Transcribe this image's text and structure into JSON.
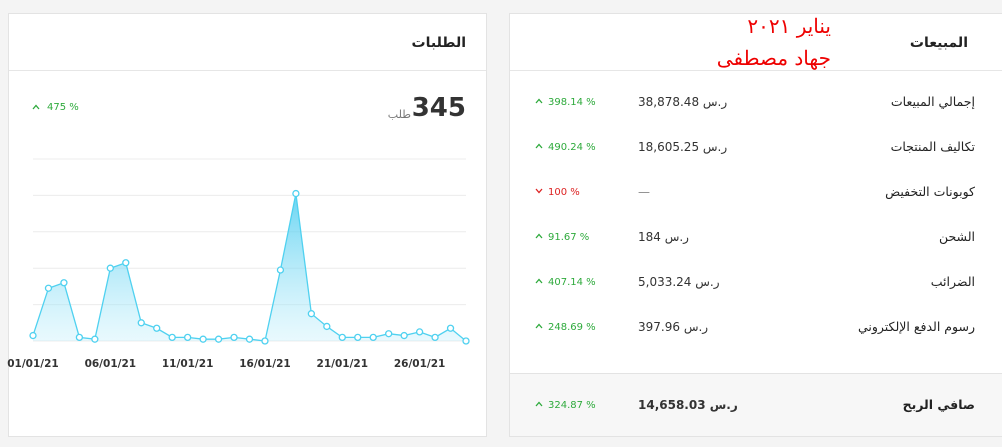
{
  "sales": {
    "title": "المبيعات",
    "annotation": [
      "يناير ٢٠٢١",
      "جهاد مصطفى"
    ],
    "rows": [
      {
        "label": "إجمالي المبيعات",
        "value": "38,878.48 ر.س",
        "change": "398.14 %"
      },
      {
        "label": "تكاليف المنتجات",
        "value": "18,605.25 ر.س",
        "change": "490.24 %"
      },
      {
        "label": "كوبونات التخفيض",
        "value": "—",
        "change": "100 %"
      },
      {
        "label": "الشحن",
        "value": "184 ر.س",
        "change": "91.67 %"
      },
      {
        "label": "الضرائب",
        "value": "5,033.24 ر.س",
        "change": "407.14 %"
      },
      {
        "label": "رسوم الدفع الإلكتروني",
        "value": "397.96 ر.س",
        "change": "248.69 %"
      }
    ],
    "net": {
      "label": "صافي الربح",
      "value": "14,658.03 ر.س",
      "change": "324.87 %"
    }
  },
  "orders": {
    "title": "الطلبات",
    "total": "345",
    "unit": "طلب",
    "change": "475 %"
  },
  "chart_data": {
    "type": "area",
    "categories": [
      "01/01/21",
      null,
      null,
      null,
      null,
      "06/01/21",
      null,
      null,
      null,
      null,
      "11/01/21",
      null,
      null,
      null,
      null,
      "16/01/21",
      null,
      null,
      null,
      null,
      "21/01/21",
      null,
      null,
      null,
      null,
      "26/01/21",
      null,
      null,
      null
    ],
    "values": [
      3,
      29,
      32,
      2,
      1,
      40,
      43,
      10,
      7,
      2,
      2,
      1,
      1,
      2,
      1,
      0,
      39,
      81,
      15,
      8,
      2,
      2,
      2,
      4,
      3,
      5,
      2,
      7,
      0
    ],
    "color": "#4fd1f0",
    "ylim": [
      0,
      100
    ],
    "yticks": [
      0,
      20,
      40,
      60,
      80,
      100
    ],
    "grid": true
  }
}
